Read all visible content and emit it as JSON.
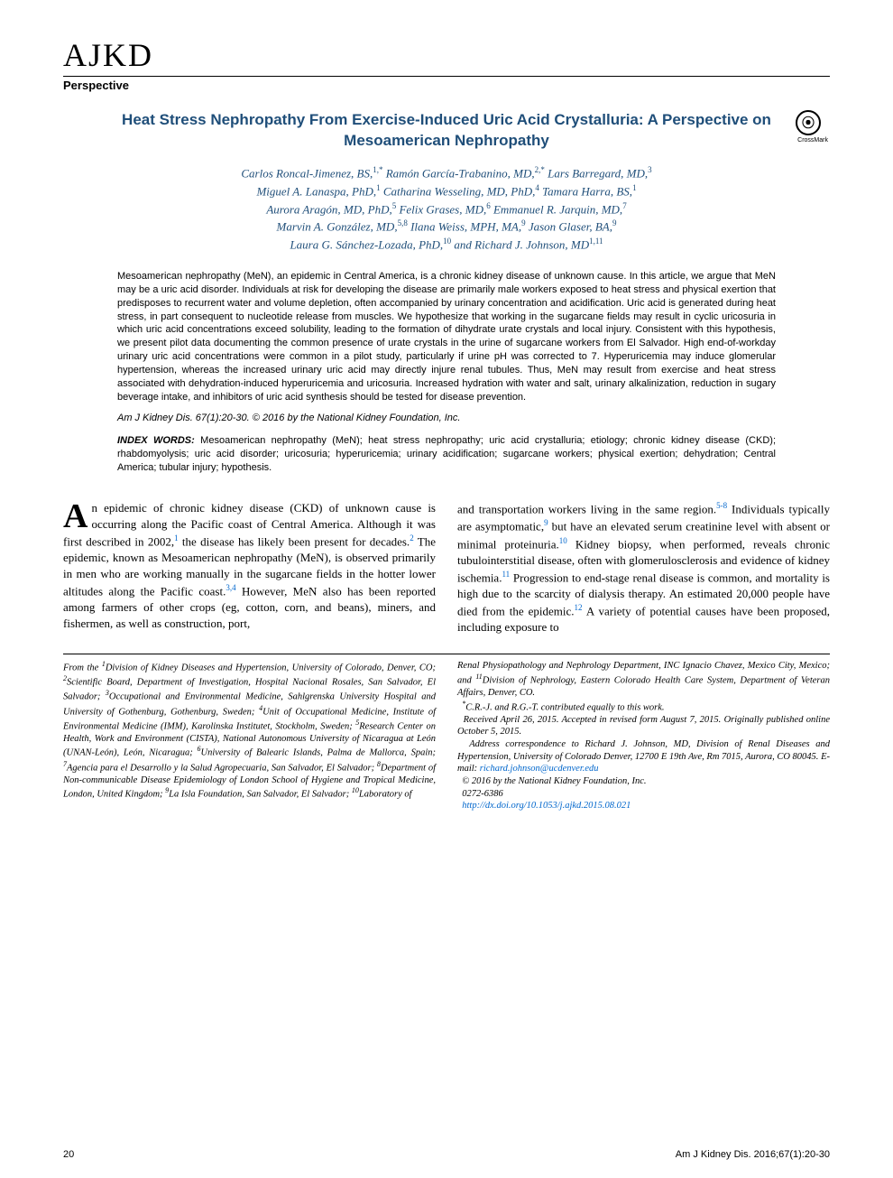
{
  "journal": {
    "logo": "AJKD",
    "article_type": "Perspective"
  },
  "crossmark": {
    "glyph": "⦿",
    "label": "CrossMark"
  },
  "title": "Heat Stress Nephropathy From Exercise-Induced Uric Acid Crystalluria: A Perspective on Mesoamerican Nephropathy",
  "authors_html": "Carlos Roncal-Jimenez, BS,<sup>1,*</sup> Ramón García-Trabanino, MD,<sup>2,*</sup> Lars Barregard, MD,<sup>3</sup><br>Miguel A. Lanaspa, PhD,<sup>1</sup> Catharina Wesseling, MD, PhD,<sup>4</sup> Tamara Harra, BS,<sup>1</sup><br>Aurora Aragón, MD, PhD,<sup>5</sup> Felix Grases, MD,<sup>6</sup> Emmanuel R. Jarquin, MD,<sup>7</sup><br>Marvin A. González, MD,<sup>5,8</sup> Ilana Weiss, MPH, MA,<sup>9</sup> Jason Glaser, BA,<sup>9</sup><br>Laura G. Sánchez-Lozada, PhD,<sup>10</sup> and Richard J. Johnson, MD<sup>1,11</sup>",
  "abstract": "Mesoamerican nephropathy (MeN), an epidemic in Central America, is a chronic kidney disease of unknown cause. In this article, we argue that MeN may be a uric acid disorder. Individuals at risk for developing the disease are primarily male workers exposed to heat stress and physical exertion that predisposes to recurrent water and volume depletion, often accompanied by urinary concentration and acidification. Uric acid is generated during heat stress, in part consequent to nucleotide release from muscles. We hypothesize that working in the sugarcane fields may result in cyclic uricosuria in which uric acid concentrations exceed solubility, leading to the formation of dihydrate urate crystals and local injury. Consistent with this hypothesis, we present pilot data documenting the common presence of urate crystals in the urine of sugarcane workers from El Salvador. High end-of-workday urinary uric acid concentrations were common in a pilot study, particularly if urine pH was corrected to 7. Hyperuricemia may induce glomerular hypertension, whereas the increased urinary uric acid may directly injure renal tubules. Thus, MeN may result from exercise and heat stress associated with dehydration-induced hyperuricemia and uricosuria. Increased hydration with water and salt, urinary alkalinization, reduction in sugary beverage intake, and inhibitors of uric acid synthesis should be tested for disease prevention.",
  "citation": "Am J Kidney Dis. 67(1):20-30. © 2016 by the National Kidney Foundation, Inc.",
  "index_words": {
    "label": "INDEX WORDS:",
    "text": " Mesoamerican nephropathy (MeN); heat stress nephropathy; uric acid crystalluria; etiology; chronic kidney disease (CKD); rhabdomyolysis; uric acid disorder; uricosuria; hyperuricemia; urinary acidification; sugarcane workers; physical exertion; dehydration; Central America; tubular injury; hypothesis."
  },
  "body": {
    "col1_html": "<span class=\"dropcap\">A</span>n epidemic of chronic kidney disease (CKD) of unknown cause is occurring along the Pacific coast of Central America. Although it was first described in 2002,<sup>1</sup> the disease has likely been present for decades.<sup>2</sup> The epidemic, known as Mesoamerican nephropathy (MeN), is observed primarily in men who are working manually in the sugarcane fields in the hotter lower altitudes along the Pacific coast.<sup>3,4</sup> However, MeN also has been reported among farmers of other crops (eg, cotton, corn, and beans), miners, and fishermen, as well as construction, port,",
    "col2_html": "and transportation workers living in the same region.<sup>5-8</sup> Individuals typically are asymptomatic,<sup>9</sup> but have an elevated serum creatinine level with absent or minimal proteinuria.<sup>10</sup> Kidney biopsy, when performed, reveals chronic tubulointerstitial disease, often with glomerulosclerosis and evidence of kidney ischemia.<sup>11</sup> Progression to end-stage renal disease is common, and mortality is high due to the scarcity of dialysis therapy. An estimated 20,000 people have died from the epidemic.<sup>12</sup> A variety of potential causes have been proposed, including exposure to"
  },
  "affiliations": {
    "left_html": "From the <sup>1</sup>Division of Kidney Diseases and Hypertension, University of Colorado, Denver, CO; <sup>2</sup>Scientific Board, Department of Investigation, Hospital Nacional Rosales, San Salvador, El Salvador; <sup>3</sup>Occupational and Environmental Medicine, Sahlgrenska University Hospital and University of Gothenburg, Gothenburg, Sweden; <sup>4</sup>Unit of Occupational Medicine, Institute of Environmental Medicine (IMM), Karolinska Institutet, Stockholm, Sweden; <sup>5</sup>Research Center on Health, Work and Environment (CISTA), National Autonomous University of Nicaragua at León (UNAN-León), León, Nicaragua; <sup>6</sup>University of Balearic Islands, Palma de Mallorca, Spain; <sup>7</sup>Agencia para el Desarrollo y la Salud Agropecuaria, San Salvador, El Salvador; <sup>8</sup>Department of Non-communicable Disease Epidemiology of London School of Hygiene and Tropical Medicine, London, United Kingdom; <sup>9</sup>La Isla Foundation, San Salvador, El Salvador; <sup>10</sup>Laboratory of",
    "right_html": "Renal Physiopathology and Nephrology Department, INC Ignacio Chavez, Mexico City, Mexico; and <sup>11</sup>Division of Nephrology, Eastern Colorado Health Care System, Department of Veteran Affairs, Denver, CO.<br>&nbsp;&nbsp;<sup>*</sup>C.R.-J. and R.G.-T. contributed equally to this work.<br>&nbsp;&nbsp;Received April 26, 2015. Accepted in revised form August 7, 2015. Originally published online October 5, 2015.<br>&nbsp;&nbsp;Address correspondence to Richard J. Johnson, MD, Division of Renal Diseases and Hypertension, University of Colorado Denver, 12700 E 19th Ave, Rm 7015, Aurora, CO 80045. E-mail: <span class=\"email\">richard.johnson@ucdenver.edu</span><br>&nbsp;&nbsp;© 2016 by the National Kidney Foundation, Inc.<br>&nbsp;&nbsp;0272-6386<br>&nbsp;&nbsp;<span class=\"doi\">http://dx.doi.org/10.1053/j.ajkd.2015.08.021</span>"
  },
  "footer": {
    "page": "20",
    "running": "Am J Kidney Dis. 2016;67(1):20-30"
  },
  "colors": {
    "title": "#1f4e79",
    "link": "#0066cc",
    "text": "#000000",
    "background": "#ffffff"
  },
  "typography": {
    "title_fontsize": 17,
    "authors_fontsize": 13,
    "abstract_fontsize": 11,
    "body_fontsize": 13,
    "affil_fontsize": 10.5,
    "footer_fontsize": 11
  }
}
